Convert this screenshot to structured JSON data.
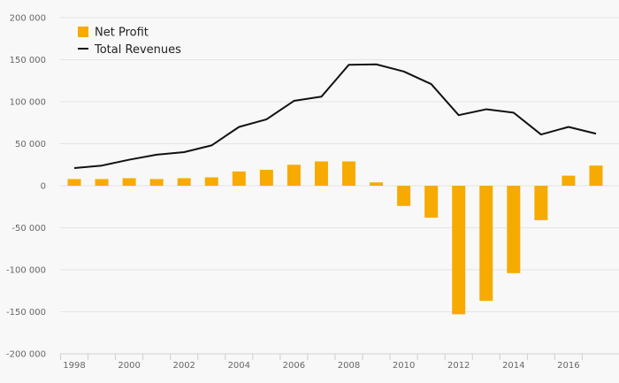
{
  "chart_data": {
    "type": "bar+line",
    "title": "",
    "xlabel": "",
    "ylabel": "",
    "ylim": [
      -200000,
      200000
    ],
    "yticks": [
      200000,
      150000,
      100000,
      50000,
      0,
      -50000,
      -100000,
      -150000,
      -200000
    ],
    "ytick_labels": [
      "200 000",
      "150 000",
      "100 000",
      "50 000",
      "0",
      "-50 000",
      "-100 000",
      "-150 000",
      "-200 000"
    ],
    "categories": [
      1998,
      1999,
      2000,
      2001,
      2002,
      2003,
      2004,
      2005,
      2006,
      2007,
      2008,
      2009,
      2010,
      2011,
      2012,
      2013,
      2014,
      2015,
      2016,
      2017
    ],
    "xtick_labels": [
      "1998",
      "2000",
      "2002",
      "2004",
      "2006",
      "2008",
      "2010",
      "2012",
      "2014",
      "2016"
    ],
    "series": [
      {
        "name": "Net Profit",
        "kind": "bar",
        "color": "#f7ab00",
        "values": [
          8000,
          8000,
          9000,
          8000,
          9000,
          10000,
          17000,
          19000,
          25000,
          29000,
          29000,
          4000,
          -24000,
          -38000,
          -153000,
          -137000,
          -104000,
          -41000,
          12000,
          24000
        ]
      },
      {
        "name": "Total Revenues",
        "kind": "line",
        "color": "#111111",
        "values": [
          21000,
          24000,
          31000,
          37000,
          40000,
          48000,
          70000,
          79000,
          101000,
          106000,
          144000,
          144500,
          136000,
          121000,
          84000,
          91000,
          87000,
          61000,
          70000,
          62000
        ]
      }
    ],
    "legend_position": "top-left",
    "grid": true
  }
}
